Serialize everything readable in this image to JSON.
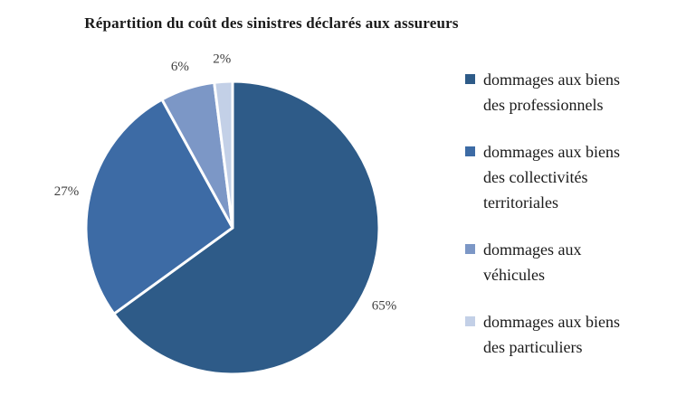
{
  "header": {
    "title": "Répartition du coût des sinistres déclarés aux assureurs"
  },
  "chart_data": {
    "type": "pie",
    "title": "Répartition du coût des sinistres déclarés aux assureurs",
    "start_angle_deg": 0,
    "direction": "clockwise",
    "legend_position": "right",
    "data_labels": "percent-outside",
    "slices": [
      {
        "label": "dommages aux biens\ndes professionnels",
        "value": 65,
        "display": "65%",
        "color": "#2E5B88"
      },
      {
        "label": "dommages aux biens\ndes collectivités\nterritoriales",
        "value": 27,
        "display": "27%",
        "color": "#3D6BA5"
      },
      {
        "label": "dommages aux\nvéhicules",
        "value": 6,
        "display": "6%",
        "color": "#7C97C6"
      },
      {
        "label": "dommages aux biens\ndes particuliers",
        "value": 2,
        "display": "2%",
        "color": "#C3D0E7"
      }
    ]
  }
}
